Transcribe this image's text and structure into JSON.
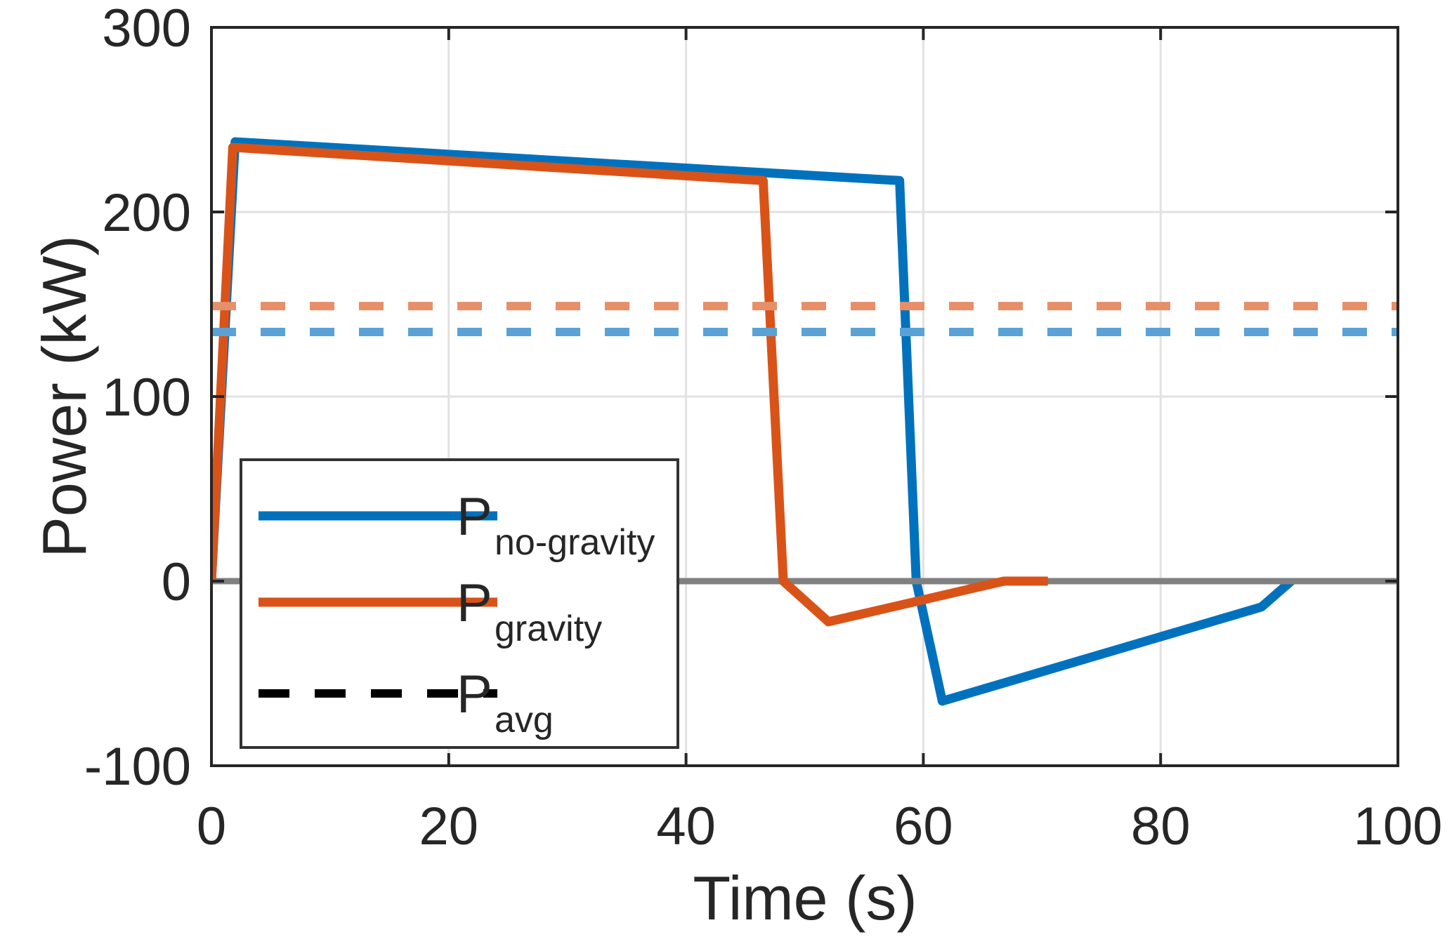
{
  "figure": {
    "background": "#FFFFFF",
    "axis_color": "#262626",
    "grid_color": "#E2E2E2",
    "text_color": "#262626",
    "zero_line_color": "#808080"
  },
  "chart_data": {
    "type": "line",
    "title": "",
    "xlabel": "Time (s)",
    "ylabel": "Power (kW)",
    "xlim": [
      0,
      100
    ],
    "ylim": [
      -100,
      300
    ],
    "xticks": [
      0,
      20,
      40,
      60,
      80,
      100
    ],
    "xtick_labels": [
      "0",
      "20",
      "40",
      "60",
      "80",
      "100"
    ],
    "yticks": [
      -100,
      0,
      100,
      200,
      300
    ],
    "ytick_labels": [
      "-100",
      "0",
      "100",
      "200",
      "300"
    ],
    "grid": true,
    "legend_location": "inside lower-left",
    "series": [
      {
        "name": "P_no-gravity",
        "color": "#0072BD",
        "style": "solid",
        "width": 13,
        "points": [
          [
            0,
            0
          ],
          [
            2,
            238
          ],
          [
            58,
            217
          ],
          [
            59.4,
            0
          ],
          [
            61.6,
            -65
          ],
          [
            88.5,
            -14
          ],
          [
            91,
            0
          ]
        ]
      },
      {
        "name": "zero-reference",
        "color": "#808080",
        "style": "solid",
        "width": 9,
        "points": [
          [
            0,
            0
          ],
          [
            100,
            0
          ]
        ]
      },
      {
        "name": "P_gravity",
        "color": "#D95319",
        "style": "solid",
        "width": 13,
        "points": [
          [
            0,
            0
          ],
          [
            1.8,
            235
          ],
          [
            46.5,
            217
          ],
          [
            48.2,
            0
          ],
          [
            52,
            -22
          ],
          [
            66.8,
            0
          ],
          [
            70.5,
            0
          ]
        ]
      },
      {
        "name": "P_avg_no-gravity",
        "color": "#5AA2D6",
        "style": "dashed",
        "width": 12,
        "points": [
          [
            0,
            135
          ],
          [
            100,
            135
          ]
        ]
      },
      {
        "name": "P_avg_gravity",
        "color": "#E68F69",
        "style": "dashed",
        "width": 12,
        "points": [
          [
            0,
            149
          ],
          [
            100,
            149
          ]
        ]
      }
    ],
    "averages": {
      "P_avg_no_gravity_kW": 135,
      "P_avg_gravity_kW": 149
    },
    "legend": [
      {
        "main": "P",
        "sub": "no-gravity",
        "color": "#0072BD",
        "dashed": false
      },
      {
        "main": "P",
        "sub": "gravity",
        "color": "#D95319",
        "dashed": false
      },
      {
        "main": "P",
        "sub": "avg",
        "color": "#000000",
        "dashed": true
      }
    ]
  }
}
